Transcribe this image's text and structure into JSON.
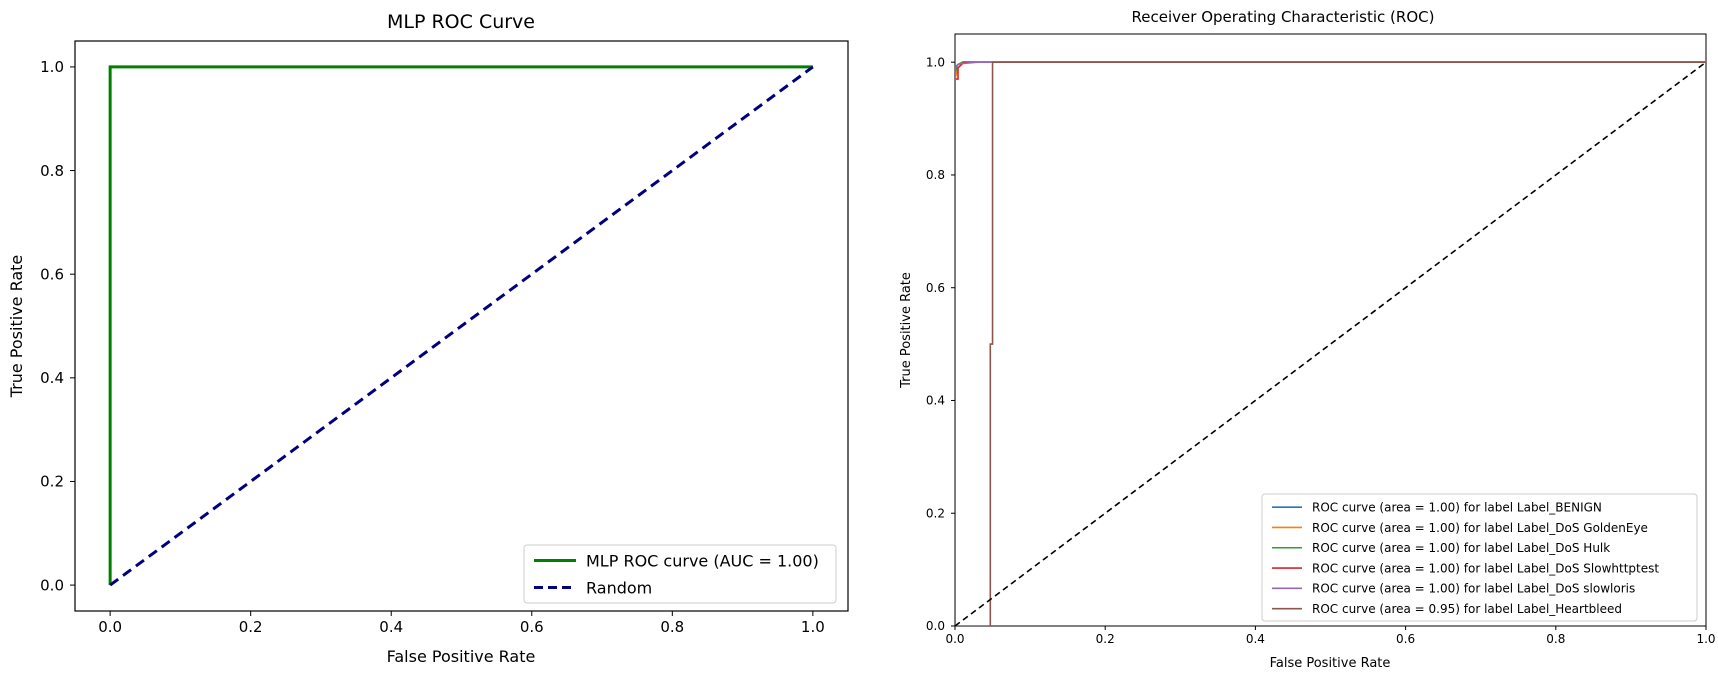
{
  "chart_data": [
    {
      "type": "line",
      "title": "MLP ROC Curve",
      "xlabel": "False Positive Rate",
      "ylabel": "True Positive Rate",
      "xlim": [
        -0.05,
        1.05
      ],
      "ylim": [
        -0.05,
        1.05
      ],
      "xticks": [
        "0.0",
        "0.2",
        "0.4",
        "0.6",
        "0.8",
        "1.0"
      ],
      "yticks": [
        "0.0",
        "0.2",
        "0.4",
        "0.6",
        "0.8",
        "1.0"
      ],
      "legend_position": "lower-right",
      "grid": false,
      "series": [
        {
          "name": "MLP ROC curve (AUC = 1.00)",
          "color": "#008000",
          "style": "solid",
          "x": [
            0,
            0,
            1
          ],
          "y": [
            0,
            1,
            1
          ]
        },
        {
          "name": "Random",
          "color": "#000080",
          "style": "dashed",
          "x": [
            0,
            1
          ],
          "y": [
            0,
            1
          ]
        }
      ]
    },
    {
      "type": "line",
      "title": "Receiver Operating Characteristic (ROC)",
      "xlabel": "False Positive Rate",
      "ylabel": "True Positive Rate",
      "xlim": [
        0,
        1
      ],
      "ylim": [
        0,
        1.05
      ],
      "xticks": [
        "0.0",
        "0.2",
        "0.4",
        "0.6",
        "0.8",
        "1.0"
      ],
      "yticks": [
        "0.0",
        "0.2",
        "0.4",
        "0.6",
        "0.8",
        "1.0"
      ],
      "legend_position": "lower-right",
      "grid": false,
      "series": [
        {
          "name": "ROC curve (area = 1.00) for label Label_BENIGN",
          "color": "#1f77b4",
          "style": "solid",
          "x": [
            0,
            0,
            0.003,
            0.01,
            1
          ],
          "y": [
            0,
            0.98,
            0.995,
            1,
            1
          ]
        },
        {
          "name": "ROC curve (area = 1.00) for label Label_DoS GoldenEye",
          "color": "#ff7f0e",
          "style": "solid",
          "x": [
            0,
            0,
            0.004,
            0.012,
            1
          ],
          "y": [
            0,
            0.97,
            0.99,
            1,
            1
          ]
        },
        {
          "name": "ROC curve (area = 1.00) for label Label_DoS Hulk",
          "color": "#2ca02c",
          "style": "solid",
          "x": [
            0,
            0,
            0.003,
            0.01,
            1
          ],
          "y": [
            0,
            0.985,
            0.995,
            1,
            1
          ]
        },
        {
          "name": "ROC curve (area = 1.00) for label Label_DoS Slowhttptest",
          "color": "#d62728",
          "style": "solid",
          "x": [
            0,
            0,
            0.004,
            0.004,
            0.012,
            1
          ],
          "y": [
            0,
            0.97,
            0.97,
            0.99,
            1,
            1
          ]
        },
        {
          "name": "ROC curve (area = 1.00) for label Label_DoS slowloris",
          "color": "#9467bd",
          "style": "solid",
          "x": [
            0,
            0,
            0.005,
            0.03,
            1
          ],
          "y": [
            0,
            0.99,
            0.997,
            1,
            1
          ]
        },
        {
          "name": "ROC curve (area = 0.95) for label Label_Heartbleed",
          "color": "#8c564b",
          "style": "solid",
          "x": [
            0,
            0.047,
            0.047,
            0.05,
            0.05,
            1
          ],
          "y": [
            0,
            0,
            0.5,
            0.5,
            1,
            1
          ]
        },
        {
          "name": "",
          "color": "#000000",
          "style": "dashed",
          "x": [
            0,
            1
          ],
          "y": [
            0,
            1
          ]
        }
      ]
    }
  ]
}
